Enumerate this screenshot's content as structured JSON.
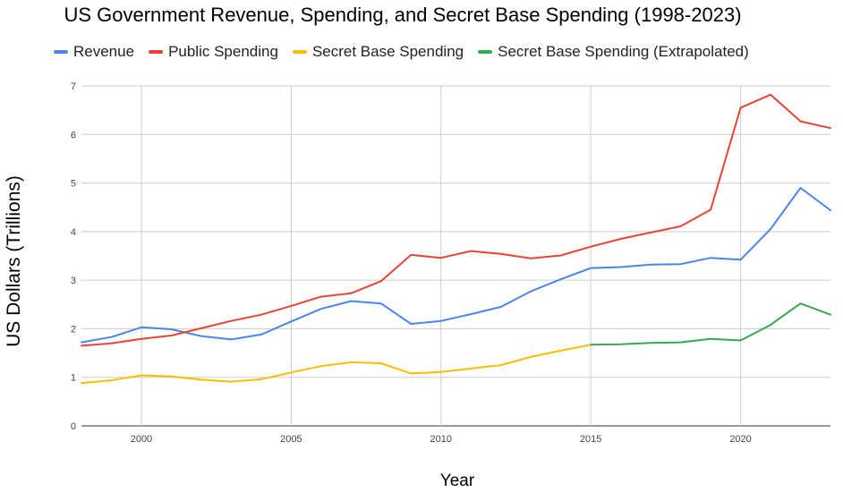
{
  "chart_data": {
    "type": "line",
    "title": "US Government Revenue, Spending, and Secret Base Spending (1998-2023)",
    "xlabel": "Year",
    "ylabel": "US Dollars (Trillions)",
    "xlim": [
      1998,
      2023
    ],
    "ylim": [
      0,
      7
    ],
    "x_ticks": [
      2000,
      2005,
      2010,
      2015,
      2020
    ],
    "y_ticks": [
      0,
      1,
      2,
      3,
      4,
      5,
      6,
      7
    ],
    "grid": true,
    "legend_position": "top",
    "series": [
      {
        "name": "Revenue",
        "color": "#4a86e8",
        "x": [
          1998,
          1999,
          2000,
          2001,
          2002,
          2003,
          2004,
          2005,
          2006,
          2007,
          2008,
          2009,
          2010,
          2011,
          2012,
          2013,
          2014,
          2015,
          2016,
          2017,
          2018,
          2019,
          2020,
          2021,
          2022,
          2023
        ],
        "y": [
          1.72,
          1.83,
          2.03,
          1.99,
          1.85,
          1.78,
          1.88,
          2.15,
          2.41,
          2.57,
          2.52,
          2.1,
          2.16,
          2.3,
          2.45,
          2.77,
          3.02,
          3.25,
          3.27,
          3.32,
          3.33,
          3.46,
          3.42,
          4.05,
          4.9,
          4.44
        ]
      },
      {
        "name": "Public Spending",
        "color": "#ea4335",
        "x": [
          1998,
          1999,
          2000,
          2001,
          2002,
          2003,
          2004,
          2005,
          2006,
          2007,
          2008,
          2009,
          2010,
          2011,
          2012,
          2013,
          2014,
          2015,
          2016,
          2017,
          2018,
          2019,
          2020,
          2021,
          2022,
          2023
        ],
        "y": [
          1.65,
          1.7,
          1.79,
          1.86,
          2.01,
          2.16,
          2.29,
          2.47,
          2.66,
          2.73,
          2.98,
          3.52,
          3.46,
          3.6,
          3.54,
          3.45,
          3.51,
          3.69,
          3.85,
          3.98,
          4.11,
          4.45,
          6.55,
          6.82,
          6.27,
          6.13
        ]
      },
      {
        "name": "Secret Base Spending",
        "color": "#fbbc04",
        "x": [
          1998,
          1999,
          2000,
          2001,
          2002,
          2003,
          2004,
          2005,
          2006,
          2007,
          2008,
          2009,
          2010,
          2011,
          2012,
          2013,
          2014,
          2015
        ],
        "y": [
          0.88,
          0.94,
          1.04,
          1.02,
          0.95,
          0.91,
          0.96,
          1.1,
          1.23,
          1.31,
          1.29,
          1.08,
          1.11,
          1.18,
          1.25,
          1.42,
          1.55,
          1.67
        ]
      },
      {
        "name": "Secret Base Spending (Extrapolated)",
        "color": "#34a853",
        "x": [
          2015,
          2016,
          2017,
          2018,
          2019,
          2020,
          2021,
          2022,
          2023
        ],
        "y": [
          1.67,
          1.68,
          1.71,
          1.72,
          1.79,
          1.76,
          2.08,
          2.52,
          2.29
        ]
      }
    ]
  }
}
